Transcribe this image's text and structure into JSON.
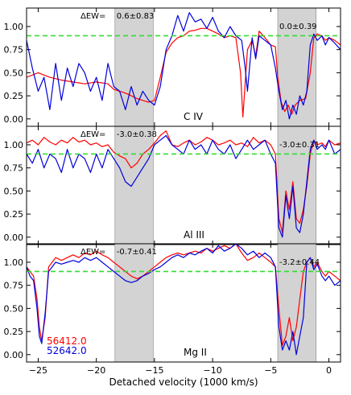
{
  "chart_data": {
    "type": "line",
    "xlabel": "Detached velocity (1000 km/s)",
    "xlim": [
      -26,
      1
    ],
    "x_ticks": [
      -25,
      -20,
      -15,
      -10,
      -5,
      0
    ],
    "colors": {
      "red": "#ff0000",
      "blue": "#0000dd",
      "reference": "#33dd33",
      "band": "#d3d3d3"
    },
    "legend": [
      {
        "label": "56412.0",
        "color": "#ff0000"
      },
      {
        "label": "52642.0",
        "color": "#0000dd"
      }
    ],
    "panels": [
      {
        "ion": "C IV",
        "ylim": [
          -0.08,
          1.2
        ],
        "y_ticks": [
          "0.00",
          "0.25",
          "0.50",
          "0.75",
          "1.00"
        ],
        "y_tick_values": [
          0,
          0.25,
          0.5,
          0.75,
          1.0
        ],
        "reference_level": 0.9,
        "bands": [
          [
            -18.4,
            -15.1
          ],
          [
            -4.4,
            -1.1
          ]
        ],
        "dew_label": "ΔEW=",
        "annotations": [
          "0.6±0.83",
          "0.0±0.39"
        ],
        "series": [
          {
            "color": "red",
            "x": [
              -26,
              -25,
              -24,
              -23,
              -22,
              -21,
              -20,
              -19,
              -18.5,
              -18,
              -17.5,
              -17,
              -16.5,
              -16,
              -15.5,
              -15,
              -14.5,
              -14,
              -13.5,
              -13,
              -12.5,
              -12,
              -11.5,
              -11,
              -10.5,
              -10,
              -9.5,
              -9,
              -8.5,
              -8,
              -7.6,
              -7.4,
              -7,
              -6.6,
              -6.3,
              -6,
              -5.5,
              -5,
              -4.6,
              -4.4,
              -4.1,
              -3.8,
              -3.5,
              -3.2,
              -2.9,
              -2.5,
              -2,
              -1.6,
              -1.3,
              -1,
              -0.6,
              -0.3,
              0,
              0.5,
              1
            ],
            "y": [
              0.45,
              0.5,
              0.45,
              0.42,
              0.4,
              0.38,
              0.4,
              0.38,
              0.32,
              0.3,
              0.28,
              0.25,
              0.22,
              0.2,
              0.18,
              0.2,
              0.45,
              0.72,
              0.82,
              0.88,
              0.9,
              0.95,
              0.96,
              0.98,
              0.98,
              0.95,
              0.92,
              0.88,
              0.9,
              0.88,
              0.5,
              0.02,
              0.75,
              0.85,
              0.68,
              0.95,
              0.88,
              0.8,
              0.78,
              0.45,
              0.18,
              0.08,
              0.15,
              0.05,
              0.15,
              0.2,
              0.22,
              0.5,
              0.88,
              0.92,
              0.9,
              0.85,
              0.88,
              0.85,
              0.8
            ]
          },
          {
            "color": "blue",
            "x": [
              -26,
              -25.5,
              -25,
              -24.5,
              -24,
              -23.5,
              -23,
              -22.5,
              -22,
              -21.5,
              -21,
              -20.5,
              -20,
              -19.5,
              -19,
              -18.5,
              -18,
              -17.5,
              -17,
              -16.5,
              -16,
              -15.5,
              -15,
              -14.5,
              -14,
              -13.5,
              -13,
              -12.5,
              -12,
              -11.5,
              -11,
              -10.5,
              -10,
              -9.5,
              -9,
              -8.5,
              -8,
              -7.5,
              -7.2,
              -7,
              -6.6,
              -6.3,
              -6,
              -5.5,
              -5,
              -4.6,
              -4.3,
              -4,
              -3.7,
              -3.4,
              -3.1,
              -2.8,
              -2.5,
              -2.2,
              -1.9,
              -1.6,
              -1.3,
              -1,
              -0.6,
              -0.3,
              0,
              0.5,
              1
            ],
            "y": [
              0.85,
              0.55,
              0.3,
              0.45,
              0.1,
              0.6,
              0.2,
              0.55,
              0.35,
              0.6,
              0.5,
              0.3,
              0.45,
              0.2,
              0.6,
              0.35,
              0.3,
              0.1,
              0.35,
              0.15,
              0.3,
              0.2,
              0.15,
              0.35,
              0.75,
              0.9,
              1.12,
              0.95,
              1.15,
              1.05,
              1.08,
              0.98,
              1.1,
              0.95,
              0.88,
              1.0,
              0.9,
              0.85,
              0.55,
              0.3,
              0.88,
              0.65,
              0.9,
              0.85,
              0.8,
              0.55,
              0.3,
              0.1,
              0.2,
              0.0,
              0.15,
              0.05,
              0.25,
              0.15,
              0.3,
              0.8,
              0.92,
              0.85,
              0.9,
              0.8,
              0.88,
              0.82,
              0.75
            ]
          }
        ]
      },
      {
        "ion": "Al III",
        "ylim": [
          -0.08,
          1.2
        ],
        "y_ticks": [
          "0.00",
          "0.25",
          "0.50",
          "0.75",
          "1.00"
        ],
        "y_tick_values": [
          0,
          0.25,
          0.5,
          0.75,
          1.0
        ],
        "reference_level": 0.9,
        "bands": [
          [
            -18.4,
            -15.1
          ],
          [
            -4.4,
            -1.1
          ]
        ],
        "dew_label": "ΔEW=",
        "annotations": [
          "-3.0±0.38",
          "-3.0±0.31"
        ],
        "series": [
          {
            "color": "red",
            "x": [
              -26,
              -25.5,
              -25,
              -24.5,
              -24,
              -23.5,
              -23,
              -22.5,
              -22,
              -21.5,
              -21,
              -20.5,
              -20,
              -19.5,
              -19,
              -18.5,
              -18,
              -17.5,
              -17,
              -16.5,
              -16,
              -15.5,
              -15,
              -14.5,
              -14,
              -13.5,
              -13,
              -12.5,
              -12,
              -11.5,
              -11,
              -10.5,
              -10,
              -9.5,
              -9,
              -8.5,
              -8,
              -7.5,
              -7,
              -6.5,
              -6,
              -5.5,
              -5,
              -4.6,
              -4.3,
              -4,
              -3.7,
              -3.4,
              -3.1,
              -2.8,
              -2.5,
              -2.2,
              -1.9,
              -1.6,
              -1.3,
              -1,
              -0.6,
              -0.3,
              0,
              0.5,
              1
            ],
            "y": [
              1.02,
              1.05,
              1.0,
              1.08,
              1.03,
              1.0,
              1.05,
              1.02,
              1.08,
              1.03,
              1.05,
              1.0,
              1.02,
              0.98,
              1.0,
              0.92,
              0.88,
              0.85,
              0.75,
              0.8,
              0.9,
              0.95,
              1.02,
              1.1,
              1.15,
              1.0,
              0.98,
              1.02,
              1.05,
              1.0,
              1.03,
              1.08,
              1.05,
              1.0,
              1.02,
              1.05,
              1.0,
              1.02,
              0.98,
              1.08,
              1.02,
              1.05,
              1.0,
              0.9,
              0.2,
              0.05,
              0.5,
              0.3,
              0.6,
              0.2,
              0.15,
              0.3,
              0.55,
              0.9,
              1.05,
              1.0,
              1.02,
              0.98,
              1.05,
              1.0,
              1.02
            ]
          },
          {
            "color": "blue",
            "x": [
              -26,
              -25.5,
              -25,
              -24.5,
              -24,
              -23.5,
              -23,
              -22.5,
              -22,
              -21.5,
              -21,
              -20.5,
              -20,
              -19.5,
              -19,
              -18.5,
              -18,
              -17.5,
              -17,
              -16.5,
              -16,
              -15.5,
              -15,
              -14.5,
              -14,
              -13.5,
              -13,
              -12.5,
              -12,
              -11.5,
              -11,
              -10.5,
              -10,
              -9.5,
              -9,
              -8.5,
              -8,
              -7.5,
              -7,
              -6.5,
              -6,
              -5.5,
              -5,
              -4.6,
              -4.3,
              -4,
              -3.7,
              -3.4,
              -3.1,
              -2.8,
              -2.5,
              -2.2,
              -1.9,
              -1.6,
              -1.3,
              -1,
              -0.6,
              -0.3,
              0,
              0.5,
              1
            ],
            "y": [
              0.9,
              0.8,
              0.95,
              0.75,
              0.9,
              0.85,
              0.7,
              0.95,
              0.75,
              0.9,
              0.85,
              0.7,
              0.9,
              0.75,
              0.95,
              0.85,
              0.75,
              0.6,
              0.55,
              0.65,
              0.75,
              0.85,
              1.0,
              1.05,
              1.1,
              1.0,
              0.95,
              0.9,
              1.05,
              0.95,
              1.0,
              0.9,
              1.05,
              0.95,
              0.9,
              1.0,
              0.85,
              0.95,
              1.05,
              0.95,
              1.0,
              1.05,
              0.9,
              0.8,
              0.1,
              0.0,
              0.45,
              0.2,
              0.55,
              0.1,
              0.05,
              0.25,
              0.6,
              0.95,
              1.05,
              0.95,
              1.0,
              0.95,
              1.05,
              0.9,
              0.95
            ]
          }
        ]
      },
      {
        "ion": "Mg II",
        "ylim": [
          -0.08,
          1.2
        ],
        "y_ticks": [
          "0.00",
          "0.25",
          "0.50",
          "0.75",
          "1.00"
        ],
        "y_tick_values": [
          0,
          0.25,
          0.5,
          0.75,
          1.0
        ],
        "reference_level": 0.9,
        "bands": [
          [
            -18.4,
            -15.1
          ],
          [
            -4.4,
            -1.1
          ]
        ],
        "dew_label": "ΔEW=",
        "annotations": [
          "-0.7±0.41",
          "-3.2±0.44"
        ],
        "series": [
          {
            "color": "red",
            "x": [
              -26,
              -25.7,
              -25.4,
              -25.1,
              -24.9,
              -24.7,
              -24.4,
              -24.1,
              -23.8,
              -23.5,
              -23,
              -22.5,
              -22,
              -21.5,
              -21,
              -20.5,
              -20,
              -19.5,
              -19,
              -18.5,
              -18,
              -17.5,
              -17,
              -16.5,
              -16,
              -15.5,
              -15,
              -14.5,
              -14,
              -13.5,
              -13,
              -12.5,
              -12,
              -11.5,
              -11,
              -10.5,
              -10,
              -9.5,
              -9,
              -8.5,
              -8,
              -7.5,
              -7,
              -6.5,
              -6,
              -5.5,
              -5,
              -4.6,
              -4.3,
              -4,
              -3.7,
              -3.4,
              -3.1,
              -2.8,
              -2.5,
              -2.2,
              -1.9,
              -1.6,
              -1.3,
              -1,
              -0.6,
              -0.3,
              0,
              0.5,
              1
            ],
            "y": [
              0.95,
              0.9,
              0.85,
              0.6,
              0.3,
              0.15,
              0.4,
              0.95,
              1.0,
              1.05,
              1.02,
              1.05,
              1.08,
              1.05,
              1.1,
              1.08,
              1.12,
              1.08,
              1.05,
              1.0,
              0.95,
              0.9,
              0.85,
              0.82,
              0.85,
              0.9,
              0.95,
              1.0,
              1.05,
              1.08,
              1.1,
              1.08,
              1.1,
              1.12,
              1.1,
              1.15,
              1.12,
              1.15,
              1.18,
              1.15,
              1.2,
              1.1,
              1.02,
              1.05,
              1.1,
              1.05,
              1.0,
              0.95,
              0.5,
              0.1,
              0.2,
              0.4,
              0.15,
              0.3,
              0.6,
              0.9,
              1.0,
              1.05,
              0.95,
              1.0,
              0.9,
              0.85,
              0.9,
              0.85,
              0.8
            ]
          },
          {
            "color": "blue",
            "x": [
              -26,
              -25.7,
              -25.4,
              -25.1,
              -24.9,
              -24.7,
              -24.4,
              -24.1,
              -23.8,
              -23.5,
              -23,
              -22.5,
              -22,
              -21.5,
              -21,
              -20.5,
              -20,
              -19.5,
              -19,
              -18.5,
              -18,
              -17.5,
              -17,
              -16.5,
              -16,
              -15.5,
              -15,
              -14.5,
              -14,
              -13.5,
              -13,
              -12.5,
              -12,
              -11.5,
              -11,
              -10.5,
              -10,
              -9.5,
              -9,
              -8.5,
              -8,
              -7.5,
              -7,
              -6.5,
              -6,
              -5.5,
              -5,
              -4.6,
              -4.3,
              -4,
              -3.7,
              -3.4,
              -3.1,
              -2.8,
              -2.5,
              -2.2,
              -1.9,
              -1.6,
              -1.3,
              -1,
              -0.6,
              -0.3,
              0,
              0.5,
              1
            ],
            "y": [
              0.95,
              0.85,
              0.8,
              0.5,
              0.2,
              0.12,
              0.45,
              0.9,
              0.95,
              1.0,
              0.98,
              1.0,
              1.02,
              1.0,
              1.05,
              1.02,
              1.05,
              1.0,
              0.95,
              0.9,
              0.85,
              0.8,
              0.78,
              0.8,
              0.85,
              0.88,
              0.92,
              0.95,
              1.0,
              1.05,
              1.08,
              1.05,
              1.1,
              1.08,
              1.12,
              1.15,
              1.1,
              1.18,
              1.12,
              1.15,
              1.2,
              1.15,
              1.08,
              1.12,
              1.05,
              1.1,
              1.05,
              0.95,
              0.3,
              0.05,
              0.15,
              0.05,
              0.25,
              0.0,
              0.2,
              0.4,
              1.0,
              1.05,
              0.92,
              0.98,
              0.85,
              0.8,
              0.85,
              0.75,
              0.8
            ]
          }
        ]
      }
    ]
  }
}
